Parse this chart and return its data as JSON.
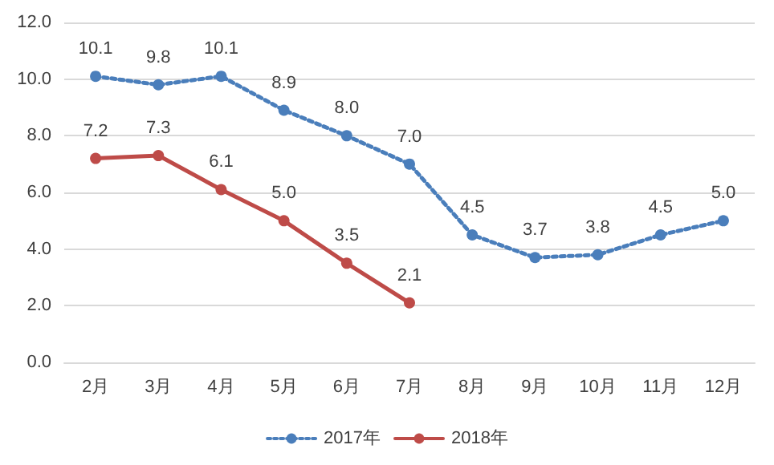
{
  "chart_data": {
    "type": "line",
    "categories": [
      "2月",
      "3月",
      "4月",
      "5月",
      "6月",
      "7月",
      "8月",
      "9月",
      "10月",
      "11月",
      "12月"
    ],
    "series": [
      {
        "name": "2017年",
        "color": "#4a7ebb",
        "line_style": "dotted",
        "values": [
          10.1,
          9.8,
          10.1,
          8.9,
          8.0,
          7.0,
          4.5,
          3.7,
          3.8,
          4.5,
          5.0
        ],
        "value_labels": [
          "10.1",
          "9.8",
          "10.1",
          "8.9",
          "8.0",
          "7.0",
          "4.5",
          "3.7",
          "3.8",
          "4.5",
          "5.0"
        ]
      },
      {
        "name": "2018年",
        "color": "#be4b48",
        "line_style": "solid",
        "values": [
          7.2,
          7.3,
          6.1,
          5.0,
          3.5,
          2.1,
          null,
          null,
          null,
          null,
          null
        ],
        "value_labels": [
          "7.2",
          "7.3",
          "6.1",
          "5.0",
          "3.5",
          "2.1",
          null,
          null,
          null,
          null,
          null
        ]
      }
    ],
    "ylim": [
      0,
      12
    ],
    "yticks": [
      {
        "value": 0,
        "label": "0.0"
      },
      {
        "value": 2,
        "label": "2.0"
      },
      {
        "value": 4,
        "label": "4.0"
      },
      {
        "value": 6,
        "label": "6.0"
      },
      {
        "value": 8,
        "label": "8.0"
      },
      {
        "value": 10,
        "label": "10.0"
      },
      {
        "value": 12,
        "label": "12.0"
      }
    ],
    "grid": "y",
    "legend": "bottom",
    "marker": "circle"
  }
}
